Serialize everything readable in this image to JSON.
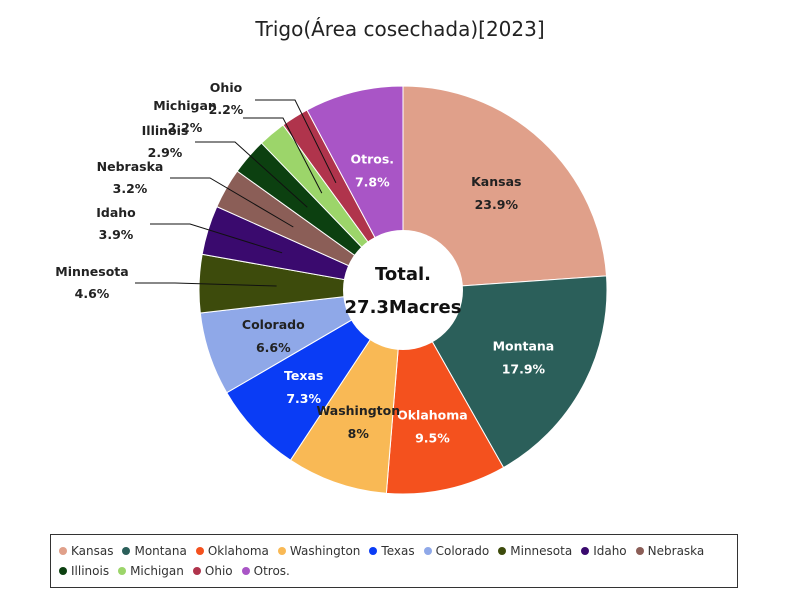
{
  "chart_data": {
    "type": "pie",
    "title": "Trigo(Área cosechada)[2023]",
    "center_label": {
      "line1": "Total.",
      "line2": "27.3Macres"
    },
    "slices": [
      {
        "name": "Kansas",
        "value": 23.9,
        "label": "23.9%",
        "color": "#e0a08a"
      },
      {
        "name": "Montana",
        "value": 17.9,
        "label": "17.9%",
        "color": "#2b5f5a"
      },
      {
        "name": "Oklahoma",
        "value": 9.5,
        "label": "9.5%",
        "color": "#f4511e"
      },
      {
        "name": "Washington",
        "value": 8.0,
        "label": "8%",
        "color": "#f9b955"
      },
      {
        "name": "Texas",
        "value": 7.3,
        "label": "7.3%",
        "color": "#0a3cf5"
      },
      {
        "name": "Colorado",
        "value": 6.6,
        "label": "6.6%",
        "color": "#8fa8e8"
      },
      {
        "name": "Minnesota",
        "value": 4.6,
        "label": "4.6%",
        "color": "#3d4b0c"
      },
      {
        "name": "Idaho",
        "value": 3.9,
        "label": "3.9%",
        "color": "#3a0a6e"
      },
      {
        "name": "Nebraska",
        "value": 3.2,
        "label": "3.2%",
        "color": "#8b5e57"
      },
      {
        "name": "Illinois",
        "value": 2.9,
        "label": "2.9%",
        "color": "#0c4010"
      },
      {
        "name": "Michigan",
        "value": 2.2,
        "label": "2.2%",
        "color": "#9cd56a"
      },
      {
        "name": "Ohio",
        "value": 2.2,
        "label": "2.2%",
        "color": "#b0344c"
      },
      {
        "name": "Otros.",
        "value": 7.8,
        "label": "7.8%",
        "color": "#a955c6"
      }
    ],
    "legend_position": "bottom"
  }
}
